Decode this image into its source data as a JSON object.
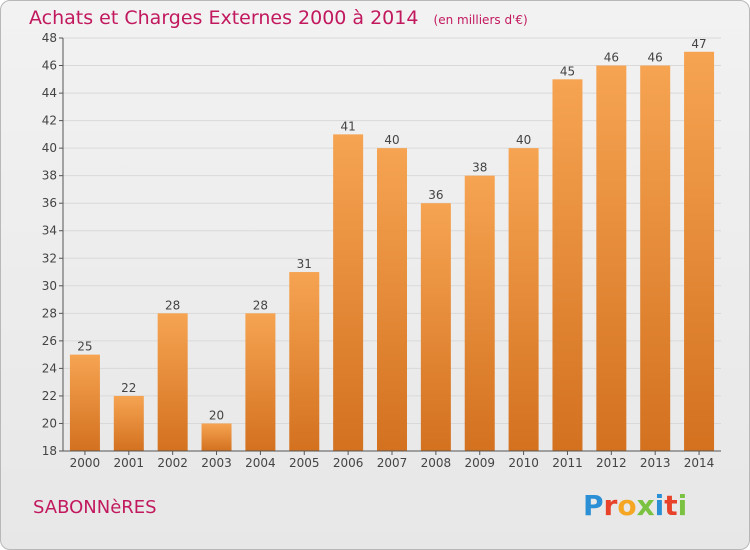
{
  "header": {
    "title": "Achats et Charges Externes 2000 à 2014",
    "subtitle": "(en milliers d'€)"
  },
  "footer": {
    "commune": "SABONNèRES",
    "brand": "Proxiti"
  },
  "colors": {
    "title": "#c2195e",
    "bar_light": "#f6a452",
    "bar_dark": "#d3711f",
    "grid": "#d9d9d9",
    "axis": "#555555"
  },
  "chart_data": {
    "type": "bar",
    "categories": [
      "2000",
      "2001",
      "2002",
      "2003",
      "2004",
      "2005",
      "2006",
      "2007",
      "2008",
      "2009",
      "2010",
      "2011",
      "2012",
      "2013",
      "2014"
    ],
    "values": [
      25,
      22,
      28,
      20,
      28,
      31,
      41,
      40,
      36,
      38,
      40,
      45,
      46,
      46,
      47
    ],
    "title": "Achats et Charges Externes 2000 à 2014",
    "subtitle": "(en milliers d'€)",
    "ylim": [
      18,
      48
    ],
    "yticks": [
      18,
      20,
      22,
      24,
      26,
      28,
      30,
      32,
      34,
      36,
      38,
      40,
      42,
      44,
      46,
      48
    ],
    "grid": true,
    "data_labels": true
  }
}
